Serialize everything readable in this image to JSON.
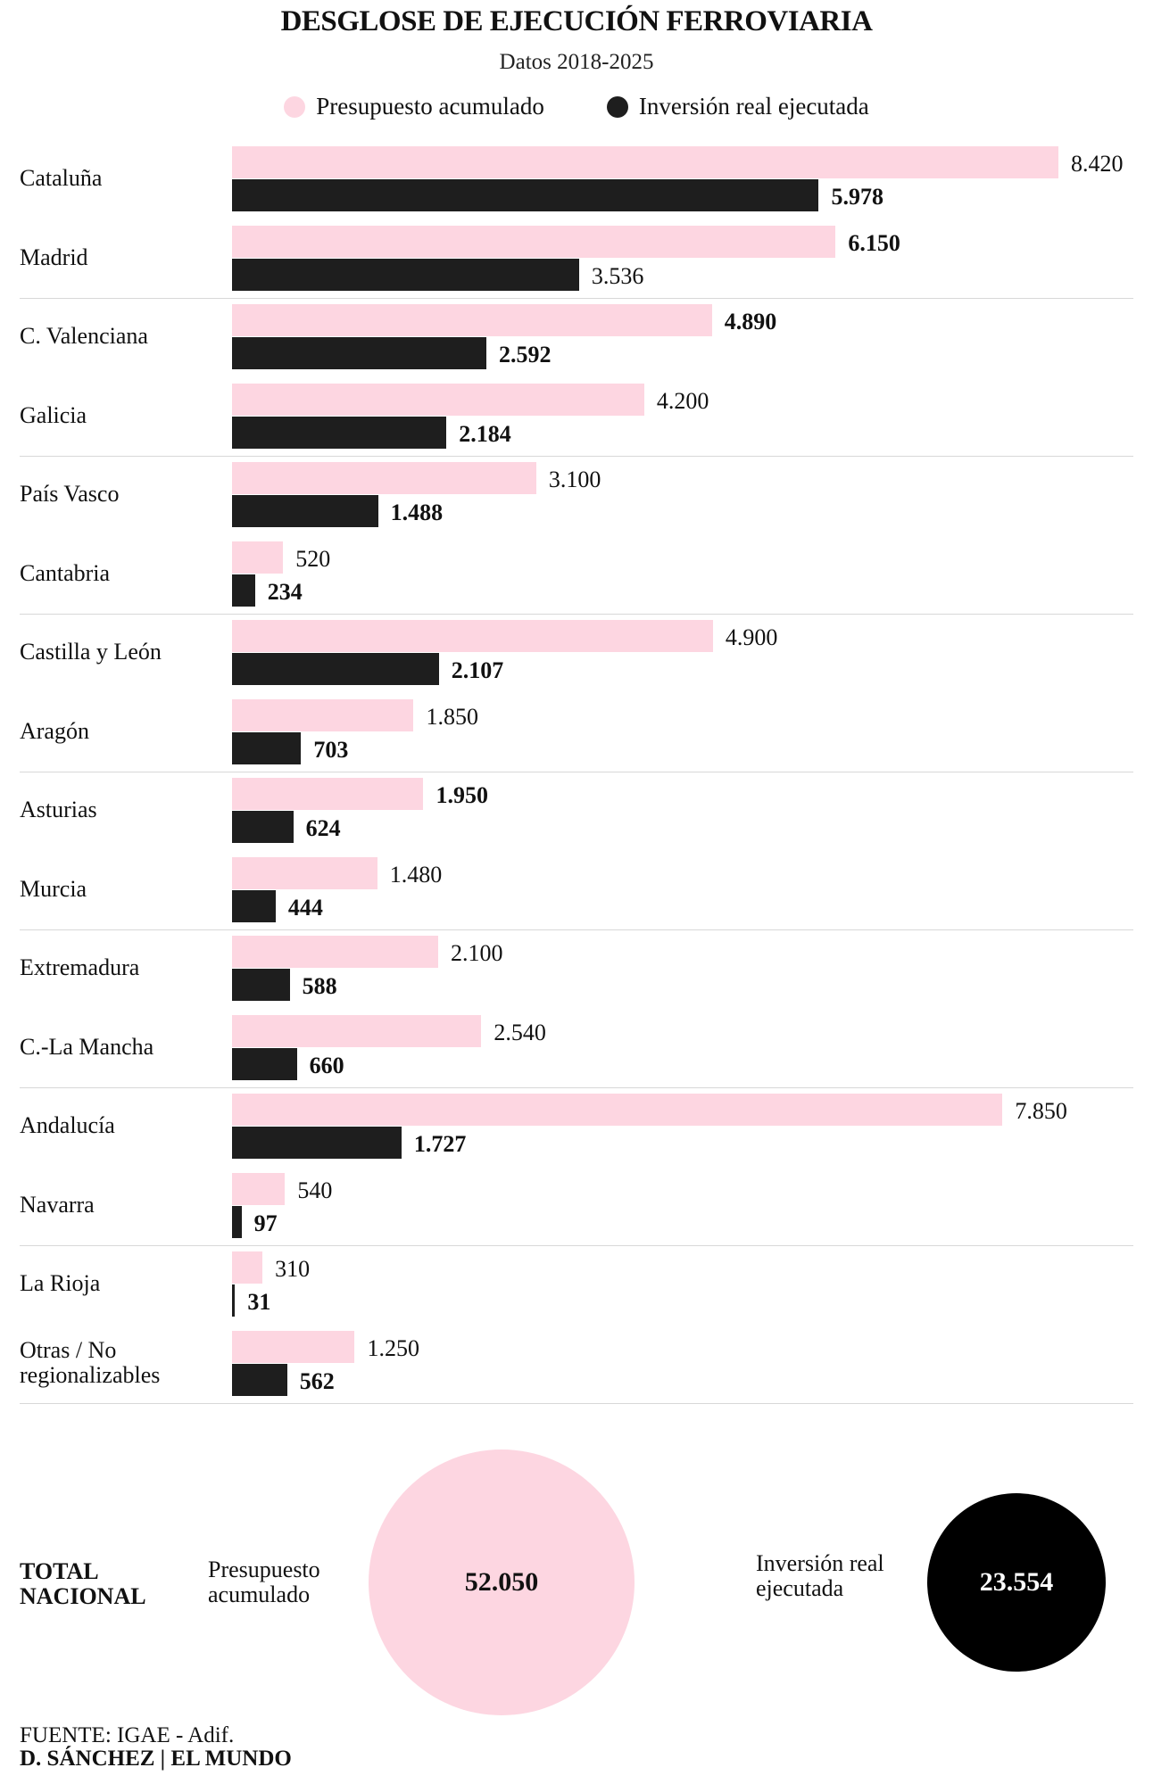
{
  "chart_data": {
    "type": "bar",
    "orientation": "horizontal",
    "title": "DESGLOSE DE EJECUCIÓN FERROVIARIA",
    "subtitle": "Datos 2018-2025",
    "legend": [
      "Presupuesto acumulado",
      "Inversión real ejecutada"
    ],
    "legend_placement": "top",
    "grid": false,
    "colors": {
      "presupuesto": "#fdd6e1",
      "inversion": "#1e1e1e"
    },
    "categories": [
      "Cataluña",
      "Madrid",
      "C. Valenciana",
      "Galicia",
      "País Vasco",
      "Cantabria",
      "Castilla y León",
      "Aragón",
      "Asturias",
      "Murcia",
      "Extremadura",
      "C.-La Mancha",
      "Andalucía",
      "Navarra",
      "La Rioja",
      "Otras / No regionalizables"
    ],
    "series": [
      {
        "name": "Presupuesto acumulado",
        "values": [
          8420,
          6150,
          4890,
          4200,
          3100,
          520,
          4900,
          1850,
          1950,
          1480,
          2100,
          2540,
          7850,
          540,
          310,
          1250
        ],
        "labels": [
          "8.420",
          "6.150",
          "4.890",
          "4.200",
          "3.100",
          "520",
          "4.900",
          "1.850",
          "1.950",
          "1.480",
          "2.100",
          "2.540",
          "7.850",
          "540",
          "310",
          "1.250"
        ],
        "bold": [
          false,
          true,
          true,
          false,
          false,
          false,
          false,
          false,
          true,
          false,
          false,
          false,
          false,
          false,
          false,
          false
        ]
      },
      {
        "name": "Inversión real ejecutada",
        "values": [
          5978,
          3536,
          2592,
          2184,
          1488,
          234,
          2107,
          703,
          624,
          444,
          588,
          660,
          1727,
          97,
          31,
          562
        ],
        "labels": [
          "5.978",
          "3.536",
          "2.592",
          "2.184",
          "1.488",
          "234",
          "2.107",
          "703",
          "624",
          "444",
          "588",
          "660",
          "1.727",
          "97",
          "31",
          "562"
        ],
        "bold": [
          true,
          false,
          true,
          true,
          true,
          true,
          true,
          true,
          true,
          true,
          true,
          true,
          true,
          true,
          true,
          true
        ]
      }
    ],
    "xlim": [
      0,
      8420
    ]
  },
  "totals": {
    "heading": "TOTAL NACIONAL",
    "presupuesto_label": "Presupuesto acumulado",
    "presupuesto_value": "52.050",
    "inversion_label": "Inversión real ejecutada",
    "inversion_value": "23.554"
  },
  "footer": {
    "source": "FUENTE:  IGAE - Adif.",
    "credit": "D. SÁNCHEZ | EL MUNDO"
  }
}
